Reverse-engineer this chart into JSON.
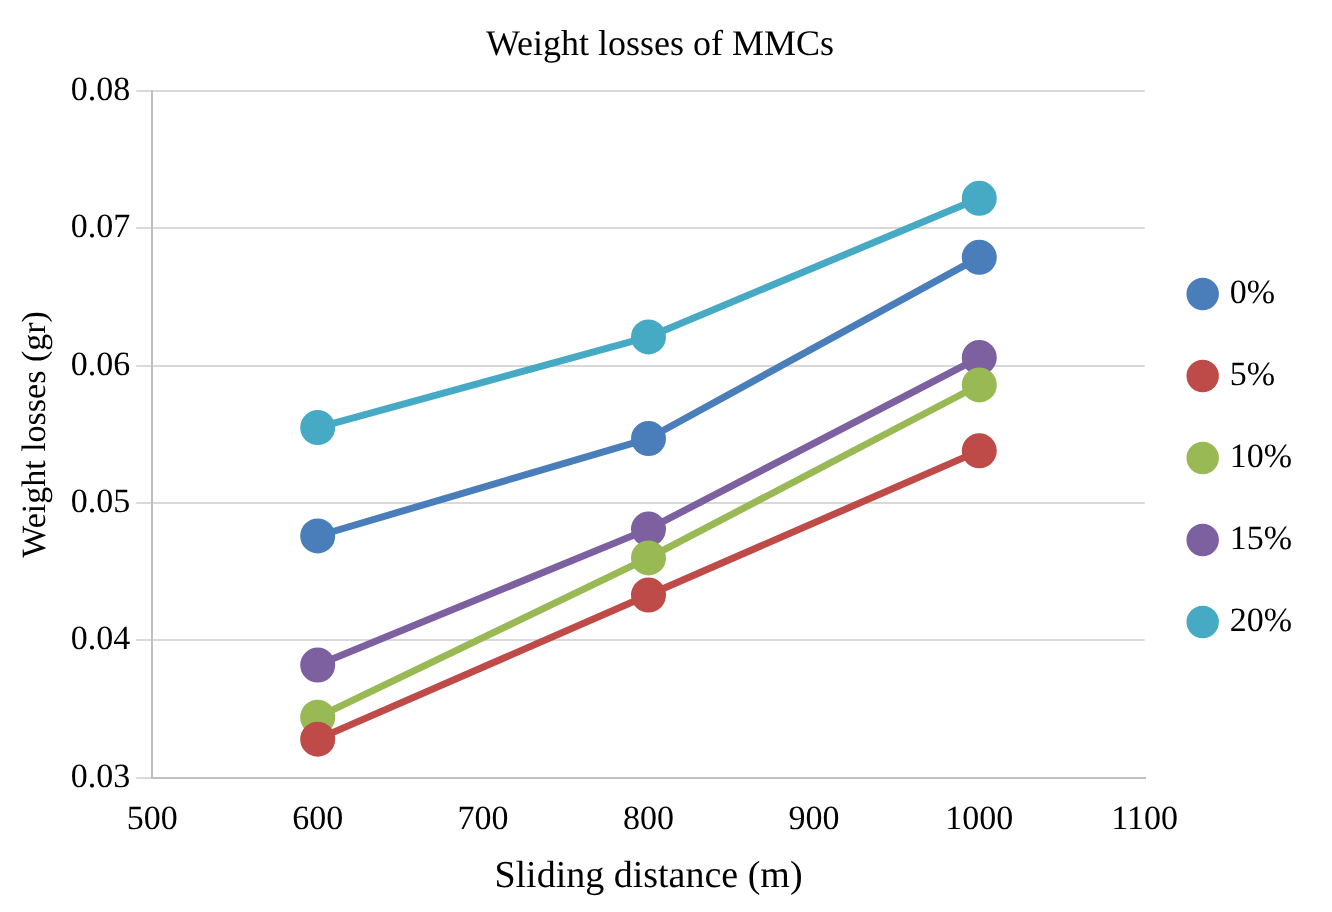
{
  "chart_data": {
    "type": "line",
    "title": "Weight losses of MMCs",
    "xlabel": "Sliding distance (m)",
    "ylabel": "Weight losses (gr)",
    "x": [
      600,
      800,
      1000
    ],
    "series": [
      {
        "name": "0%",
        "color": "#4a7ebb",
        "values": [
          0.0476,
          0.0547,
          0.0679
        ]
      },
      {
        "name": "5%",
        "color": "#be4b48",
        "values": [
          0.0328,
          0.0433,
          0.0538
        ]
      },
      {
        "name": "10%",
        "color": "#98b954",
        "values": [
          0.0344,
          0.046,
          0.0586
        ]
      },
      {
        "name": "15%",
        "color": "#7d60a0",
        "values": [
          0.0382,
          0.0481,
          0.0606
        ]
      },
      {
        "name": "20%",
        "color": "#46aac5",
        "values": [
          0.0555,
          0.0621,
          0.0722
        ]
      }
    ],
    "xlim": [
      500,
      1100
    ],
    "xticks": [
      500,
      600,
      700,
      800,
      900,
      1000,
      1100
    ],
    "ylim": [
      0.03,
      0.08
    ],
    "yticks": [
      0.03,
      0.04,
      0.05,
      0.06,
      0.07,
      0.08
    ],
    "grid": "y",
    "legend": "right",
    "marker": "circle",
    "line_style": "solid"
  }
}
